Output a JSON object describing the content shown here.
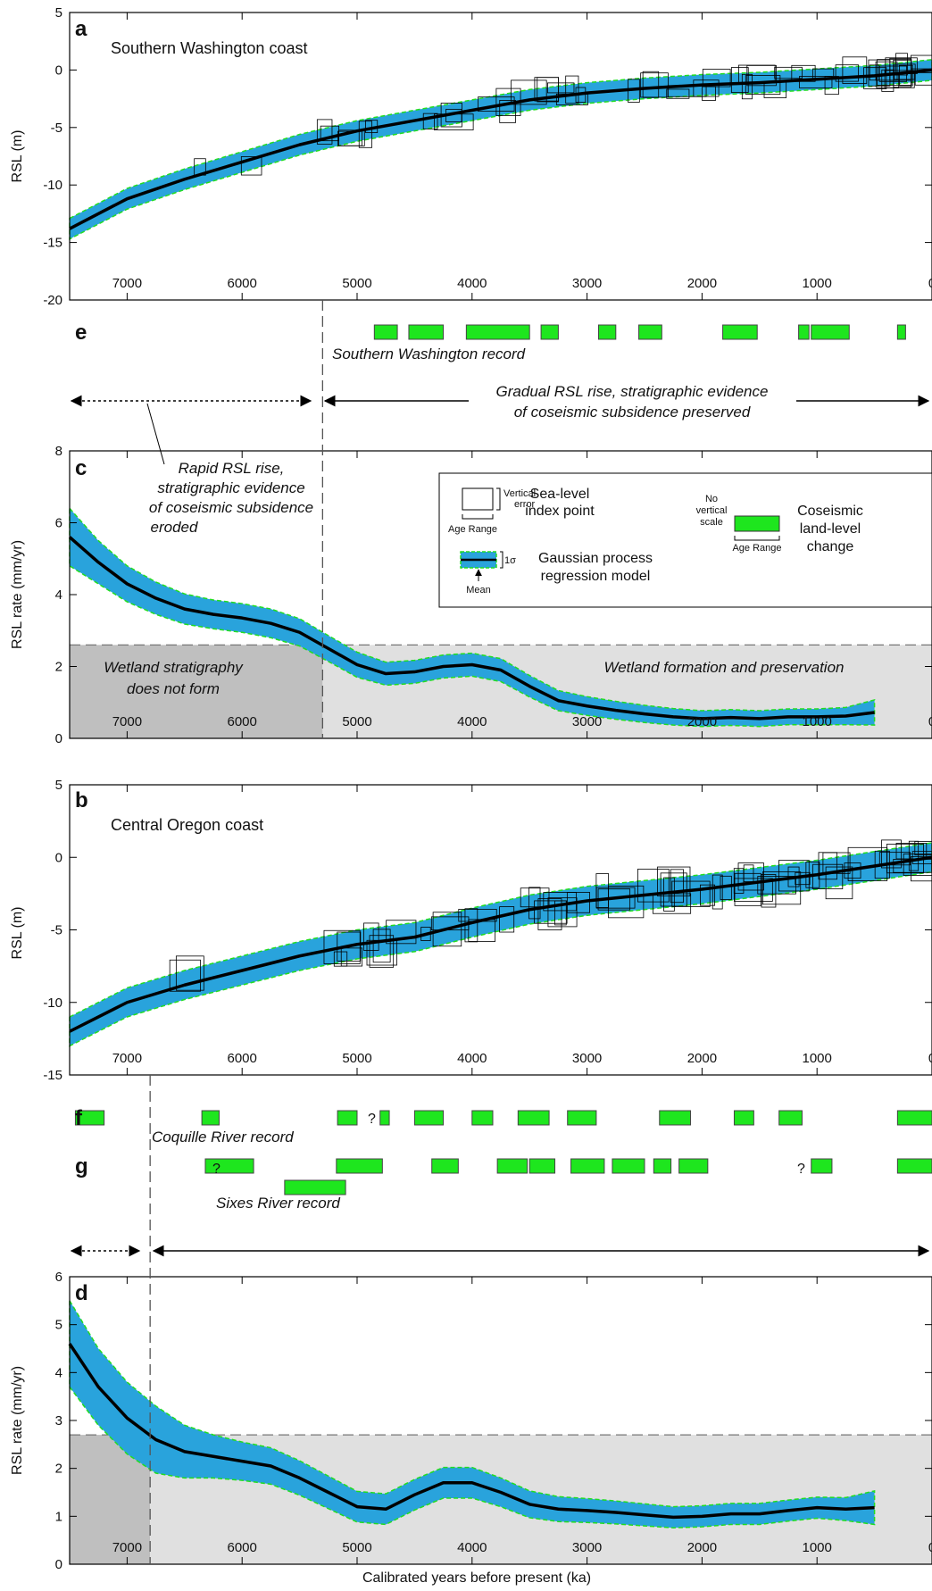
{
  "figure": {
    "xlabel": "Calibrated years before present (ka)",
    "x_ticks": [
      7000,
      6000,
      5000,
      4000,
      3000,
      2000,
      1000,
      0
    ],
    "colors": {
      "band": "#29a3dc",
      "band_edge": "#22dd22",
      "mean": "#000000",
      "event": "#1ee61e",
      "shade_light": "#e0e0e0",
      "shade_dark": "#bfbfbf"
    }
  },
  "panel_a": {
    "letter": "a",
    "site": "Southern Washington coast",
    "ylabel": "RSL (m)",
    "y_ticks": [
      "5",
      "0",
      "-5",
      "-10",
      "-15",
      "-20"
    ],
    "ylim": [
      -20,
      5
    ]
  },
  "panel_e": {
    "letter": "e",
    "record": "Southern Washington record",
    "annot_left": "Rapid RSL rise,",
    "annot_left2": "stratigraphic evidence",
    "annot_left3": "of coseismic subsidence",
    "annot_left4": "eroded",
    "annot_right1": "Gradual RSL rise, stratigraphic evidence",
    "annot_right2": "of coseismic subsidence preserved"
  },
  "panel_c": {
    "letter": "c",
    "ylabel": "RSL rate (mm/yr)",
    "y_ticks": [
      "8",
      "6",
      "4",
      "2",
      "0"
    ],
    "ylim": [
      0,
      8
    ],
    "label_left1": "Wetland stratigraphy",
    "label_left2": "does not form",
    "label_right": "Wetland formation and preservation"
  },
  "legend": {
    "vert_err": "Vertical",
    "vert_err2": "error",
    "age_range": "Age Range",
    "slip": "Sea-level",
    "slip2": "index point",
    "sigma": "1σ",
    "mean": "Mean",
    "gp1": "Gaussian process",
    "gp2": "regression model",
    "novert1": "No",
    "novert2": "vertical",
    "novert3": "scale",
    "age_range2": "Age Range",
    "cos1": "Coseismic",
    "cos2": "land-level",
    "cos3": "change"
  },
  "panel_b": {
    "letter": "b",
    "site": "Central Oregon coast",
    "ylabel": "RSL (m)",
    "y_ticks": [
      "5",
      "0",
      "-5",
      "-10",
      "-15"
    ],
    "ylim": [
      -15,
      5
    ]
  },
  "panel_f": {
    "letter": "f",
    "record": "Coquille River record",
    "q": "?"
  },
  "panel_g": {
    "letter": "g",
    "record": "Sixes River record",
    "q1": "?",
    "q2": "?"
  },
  "panel_d": {
    "letter": "d",
    "ylabel": "RSL rate (mm/yr)",
    "y_ticks": [
      "6",
      "5",
      "4",
      "3",
      "2",
      "1",
      "0"
    ],
    "ylim": [
      0,
      6
    ]
  },
  "chart_data": [
    {
      "type": "line",
      "panel": "a",
      "xlim": [
        7500,
        0
      ],
      "ylim": [
        -20,
        5
      ],
      "mean": {
        "x": [
          7500,
          7000,
          6500,
          6000,
          5500,
          5000,
          4500,
          4000,
          3500,
          3000,
          2500,
          2000,
          1500,
          1000,
          500,
          0
        ],
        "y": [
          -13.8,
          -11.2,
          -9.5,
          -8.0,
          -6.5,
          -5.3,
          -4.4,
          -3.5,
          -2.6,
          -2.0,
          -1.6,
          -1.3,
          -1.1,
          -0.8,
          -0.5,
          0
        ]
      },
      "band_halfwidth_m": 0.9
    },
    {
      "type": "timeline",
      "panel": "e",
      "events": [
        [
          4850,
          4650
        ],
        [
          4550,
          4250
        ],
        [
          4050,
          3500
        ],
        [
          3400,
          3250
        ],
        [
          2900,
          2750
        ],
        [
          2550,
          2350
        ],
        [
          1820,
          1520
        ],
        [
          1160,
          1070
        ],
        [
          1050,
          720
        ],
        [
          300,
          230
        ]
      ]
    },
    {
      "type": "line",
      "panel": "c",
      "xlim": [
        7500,
        0
      ],
      "ylim": [
        0,
        8
      ],
      "mean": {
        "x": [
          7500,
          7250,
          7000,
          6750,
          6500,
          6250,
          6000,
          5750,
          5500,
          5250,
          5000,
          4750,
          4500,
          4250,
          4000,
          3750,
          3500,
          3250,
          3000,
          2750,
          2500,
          2250,
          2000,
          1750,
          1500,
          1250,
          1000,
          750,
          500
        ],
        "y": [
          5.6,
          4.9,
          4.3,
          3.9,
          3.6,
          3.45,
          3.35,
          3.2,
          2.95,
          2.5,
          2.05,
          1.8,
          1.85,
          2.0,
          2.05,
          1.9,
          1.45,
          1.05,
          0.9,
          0.78,
          0.68,
          0.6,
          0.55,
          0.58,
          0.55,
          0.6,
          0.6,
          0.62,
          0.72
        ]
      },
      "band_halfwidth": [
        0.8,
        0.6,
        0.5,
        0.45,
        0.42,
        0.4,
        0.4,
        0.4,
        0.38,
        0.36,
        0.35,
        0.32,
        0.32,
        0.32,
        0.32,
        0.32,
        0.3,
        0.28,
        0.26,
        0.25,
        0.24,
        0.23,
        0.22,
        0.22,
        0.22,
        0.22,
        0.22,
        0.24,
        0.35
      ],
      "threshold": 2.6,
      "cutoff_x": 5300
    },
    {
      "type": "line",
      "panel": "b",
      "xlim": [
        7500,
        0
      ],
      "ylim": [
        -15,
        5
      ],
      "mean": {
        "x": [
          7500,
          7000,
          6500,
          6000,
          5500,
          5000,
          4500,
          4000,
          3500,
          3000,
          2500,
          2000,
          1500,
          1000,
          500,
          0
        ],
        "y": [
          -12.0,
          -10.0,
          -8.8,
          -7.8,
          -6.8,
          -6.0,
          -5.5,
          -4.5,
          -3.6,
          -3.0,
          -2.6,
          -2.2,
          -1.7,
          -1.2,
          -0.6,
          0
        ]
      },
      "band_halfwidth_m": 1.0
    },
    {
      "type": "timeline",
      "panel": "f",
      "events": [
        [
          7450,
          7200
        ],
        [
          6350,
          6200
        ],
        [
          5170,
          5000
        ],
        [
          4800,
          4720
        ],
        [
          4500,
          4250
        ],
        [
          4000,
          3820
        ],
        [
          3600,
          3330
        ],
        [
          3170,
          2920
        ],
        [
          2370,
          2100
        ],
        [
          1720,
          1550
        ],
        [
          1330,
          1130
        ],
        [
          300,
          0
        ]
      ]
    },
    {
      "type": "timeline",
      "panel": "g",
      "events": [
        [
          6320,
          5900
        ],
        [
          5180,
          4780
        ],
        [
          4350,
          4120
        ],
        [
          3780,
          3520
        ],
        [
          3500,
          3280
        ],
        [
          3140,
          2850
        ],
        [
          2780,
          2500
        ],
        [
          2420,
          2270
        ],
        [
          2200,
          1950
        ],
        [
          1050,
          870
        ],
        [
          300,
          0
        ]
      ],
      "lower_event": [
        5630,
        5100
      ]
    },
    {
      "type": "line",
      "panel": "d",
      "xlim": [
        7500,
        0
      ],
      "ylim": [
        0,
        6
      ],
      "mean": {
        "x": [
          7500,
          7250,
          7000,
          6750,
          6500,
          6250,
          6000,
          5750,
          5500,
          5250,
          5000,
          4750,
          4500,
          4250,
          4000,
          3750,
          3500,
          3250,
          3000,
          2750,
          2500,
          2250,
          2000,
          1750,
          1500,
          1250,
          1000,
          750,
          500
        ],
        "y": [
          4.6,
          3.7,
          3.05,
          2.6,
          2.35,
          2.25,
          2.15,
          2.05,
          1.8,
          1.5,
          1.2,
          1.15,
          1.45,
          1.7,
          1.7,
          1.5,
          1.25,
          1.15,
          1.12,
          1.08,
          1.03,
          0.98,
          1.0,
          1.05,
          1.05,
          1.12,
          1.18,
          1.15,
          1.18
        ]
      },
      "band_halfwidth": [
        0.9,
        0.8,
        0.75,
        0.7,
        0.55,
        0.45,
        0.4,
        0.38,
        0.36,
        0.34,
        0.32,
        0.32,
        0.32,
        0.32,
        0.32,
        0.3,
        0.28,
        0.26,
        0.25,
        0.24,
        0.23,
        0.22,
        0.22,
        0.22,
        0.22,
        0.22,
        0.22,
        0.24,
        0.35
      ],
      "threshold": 2.7,
      "cutoff_x": 6800
    }
  ]
}
